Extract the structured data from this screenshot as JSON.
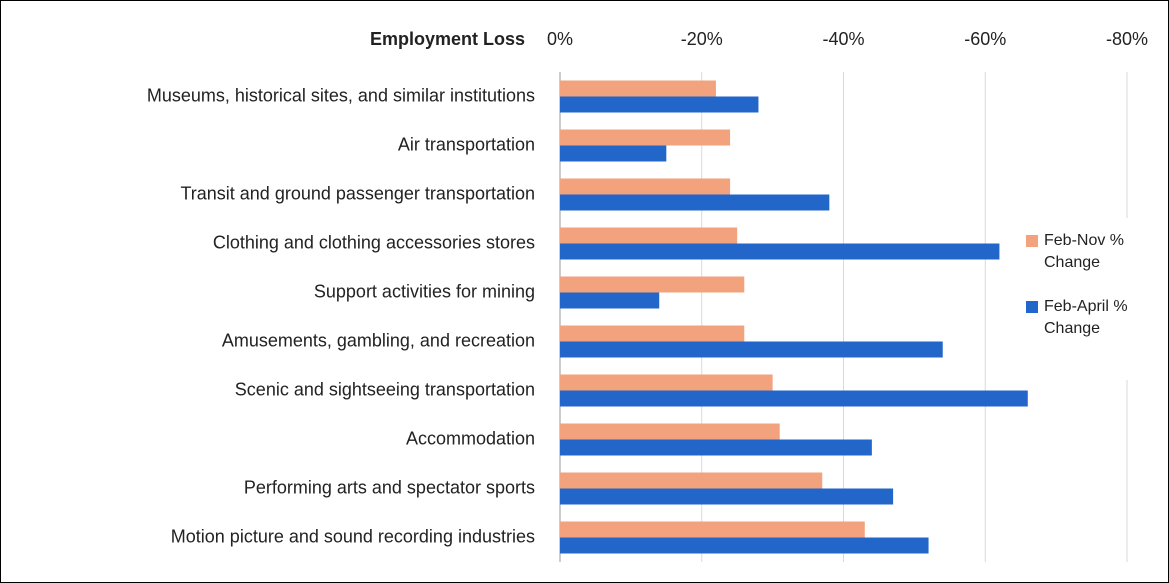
{
  "chart_data": {
    "type": "bar",
    "orientation": "horizontal",
    "x_label": "Employment Loss",
    "categories": [
      "Museums, historical sites, and similar institutions",
      "Air transportation",
      "Transit and ground passenger transportation",
      "Clothing and clothing accessories stores",
      "Support activities for mining",
      "Amusements, gambling, and recreation",
      "Scenic and sightseeing transportation",
      "Accommodation",
      "Performing arts and spectator sports",
      "Motion picture and sound recording industries"
    ],
    "series": [
      {
        "name": "Feb-Nov % Change",
        "color": "#f2a27c",
        "values": [
          -22,
          -24,
          -24,
          -25,
          -26,
          -26,
          -30,
          -31,
          -37,
          -43
        ]
      },
      {
        "name": "Feb-April % Change",
        "color": "#2166c8",
        "values": [
          -28,
          -15,
          -38,
          -62,
          -14,
          -54,
          -66,
          -44,
          -47,
          -52
        ]
      }
    ],
    "xlim": [
      0,
      -80
    ],
    "xticks": [
      {
        "value": 0,
        "label": "0%"
      },
      {
        "value": -20,
        "label": "-20%"
      },
      {
        "value": -40,
        "label": "-40%"
      },
      {
        "value": -60,
        "label": "-60%"
      },
      {
        "value": -80,
        "label": "-80%"
      }
    ],
    "grid": true,
    "legend": "right"
  }
}
